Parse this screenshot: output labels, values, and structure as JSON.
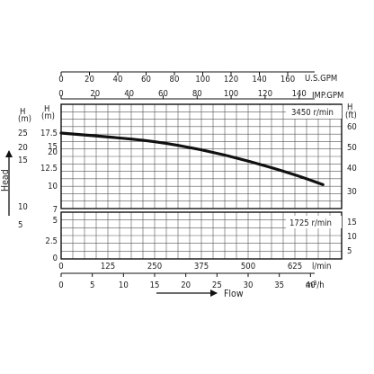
{
  "chart_data": {
    "type": "line",
    "units": {
      "us_gpm": "U.S.GPM",
      "imp_gpm": "IMP.GPM",
      "head_m": "(m)",
      "head_h": "H",
      "head_ft": "(ft)",
      "flow_lmin": "l/min",
      "flow_m3h": "m³/h"
    },
    "axis_titles": {
      "head": "Head",
      "flow": "Flow"
    },
    "speed_labels": {
      "upper": "3450 r/min",
      "lower": "1725 r/min"
    },
    "x_lmin": {
      "ticks": [
        "0",
        "125",
        "250",
        "375",
        "500",
        "625"
      ],
      "range": [
        0,
        750
      ]
    },
    "x_m3h": {
      "ticks": [
        "0",
        "5",
        "10",
        "15",
        "20",
        "25",
        "30",
        "35",
        "40"
      ],
      "range": [
        0,
        45
      ]
    },
    "x_usgpm": {
      "ticks": [
        "0",
        "20",
        "40",
        "60",
        "80",
        "100",
        "120",
        "140",
        "160"
      ],
      "range": [
        0,
        198.1
      ]
    },
    "x_impgpm": {
      "ticks": [
        "0",
        "20",
        "40",
        "60",
        "80",
        "100",
        "120",
        "140"
      ],
      "range": [
        0,
        165
      ]
    },
    "upper_head_m_ticks": [
      "10",
      "12.5",
      "15",
      "17.5",
      "20",
      "25"
    ],
    "upper_head_ft_ticks": [
      "30",
      "40",
      "50",
      "60"
    ],
    "lower_head_m_ticks": [
      "0",
      "2.5",
      "5",
      "7"
    ],
    "lower_head_ft_ticks": [
      "5",
      "10",
      "15"
    ],
    "series": [
      {
        "x_lmin": [
          0,
          125,
          250,
          375,
          500,
          625,
          700
        ],
        "head_m": [
          18.6,
          18.0,
          17.3,
          16.0,
          14.2,
          12.0,
          10.4
        ]
      }
    ]
  }
}
